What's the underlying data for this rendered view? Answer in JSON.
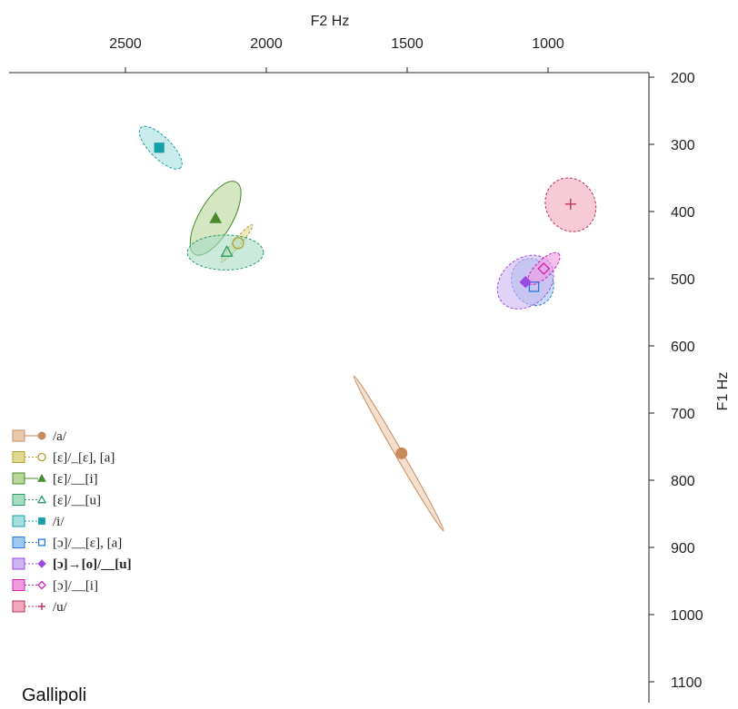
{
  "chart_data": {
    "type": "scatter",
    "title": "",
    "panel_label": "Gallipoli",
    "xlabel": "F2 Hz",
    "ylabel": "F1 Hz",
    "x_axis": {
      "position": "top",
      "reversed": true,
      "ticks": [
        2500,
        2000,
        1500,
        1000
      ]
    },
    "y_axis": {
      "position": "right",
      "reversed": true,
      "ticks": [
        200,
        300,
        400,
        500,
        600,
        700,
        800,
        900,
        1000,
        1100
      ]
    },
    "grid": false,
    "legend_position": "bottom-left",
    "series": [
      {
        "name": "/a/",
        "color": "#c98a5a",
        "fill": "#e9c9ad",
        "marker": "circle-filled",
        "dashed": false,
        "bold": false,
        "mean": {
          "f2": 1520,
          "f1": 760
        },
        "spread": {
          "f2_min": 1460,
          "f2_max": 1600,
          "f1_min": 650,
          "f1_max": 870
        },
        "tilt_deg": 60
      },
      {
        "name": "[ɛ]/_[ɛ], [a]",
        "color": "#b0a030",
        "fill": "#e0d98f",
        "marker": "circle-open",
        "dashed": true,
        "bold": false,
        "mean": {
          "f2": 2100,
          "f1": 447
        },
        "spread": {
          "f2_min": 2050,
          "f2_max": 2160,
          "f1_min": 420,
          "f1_max": 475
        },
        "tilt_deg": 40
      },
      {
        "name": "[ɛ]/__[i]",
        "color": "#4a8a2a",
        "fill": "#b9d69a",
        "marker": "triangle-filled",
        "dashed": false,
        "bold": false,
        "mean": {
          "f2": 2180,
          "f1": 410
        },
        "spread": {
          "f2_min": 2090,
          "f2_max": 2270,
          "f1_min": 355,
          "f1_max": 465
        },
        "tilt_deg": -60
      },
      {
        "name": "[ɛ]/__[u]",
        "color": "#2a9a6a",
        "fill": "#a8dcc3",
        "marker": "triangle-open",
        "dashed": true,
        "bold": false,
        "mean": {
          "f2": 2140,
          "f1": 460
        },
        "spread": {
          "f2_min": 2010,
          "f2_max": 2280,
          "f1_min": 435,
          "f1_max": 487
        },
        "tilt_deg": 0
      },
      {
        "name": "/i/",
        "color": "#16a0a8",
        "fill": "#a7dede",
        "marker": "square-filled",
        "dashed": true,
        "bold": false,
        "mean": {
          "f2": 2380,
          "f1": 305
        },
        "spread": {
          "f2_min": 2290,
          "f2_max": 2460,
          "f1_min": 265,
          "f1_max": 345
        },
        "tilt_deg": 45
      },
      {
        "name": "[ɔ]/__[ɛ], [a]",
        "color": "#2a78d8",
        "fill": "#9dc9f0",
        "marker": "square-open",
        "dashed": true,
        "bold": false,
        "mean": {
          "f2": 1050,
          "f1": 512
        },
        "spread": {
          "f2_min": 980,
          "f2_max": 1130,
          "f1_min": 470,
          "f1_max": 540
        },
        "tilt_deg": -25
      },
      {
        "name": "[ɔ]→[o]/__[u]",
        "color": "#9a4ae0",
        "fill": "#cdb4f2",
        "marker": "diamond-filled",
        "dashed": true,
        "bold": true,
        "mean": {
          "f2": 1080,
          "f1": 505
        },
        "spread": {
          "f2_min": 980,
          "f2_max": 1180,
          "f1_min": 465,
          "f1_max": 545
        },
        "tilt_deg": -40
      },
      {
        "name": "[ɔ]/__[i]",
        "color": "#d020b8",
        "fill": "#f09ae0",
        "marker": "diamond-open",
        "dashed": true,
        "bold": false,
        "mean": {
          "f2": 1015,
          "f1": 485
        },
        "spread": {
          "f2_min": 950,
          "f2_max": 1080,
          "f1_min": 455,
          "f1_max": 515
        },
        "tilt_deg": -45
      },
      {
        "name": "/u/",
        "color": "#c0305a",
        "fill": "#f0a8bc",
        "marker": "plus",
        "dashed": true,
        "bold": false,
        "mean": {
          "f2": 920,
          "f1": 389
        },
        "spread": {
          "f2_min": 830,
          "f2_max": 1010,
          "f1_min": 350,
          "f1_max": 430
        },
        "tilt_deg": -30
      }
    ]
  }
}
